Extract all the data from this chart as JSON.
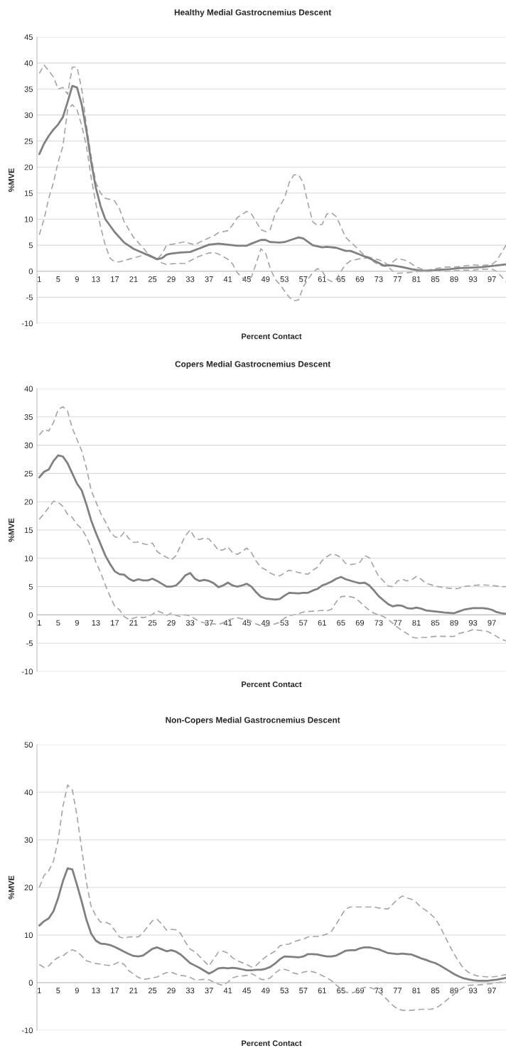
{
  "chart_data": [
    {
      "type": "line",
      "title": "Healthy Medial Gastrocnemius Descent",
      "xlabel": "Percent Contact",
      "ylabel": "%MVE",
      "xlim": [
        0.5,
        100
      ],
      "xticks": [
        1,
        5,
        9,
        13,
        17,
        21,
        25,
        29,
        33,
        37,
        41,
        45,
        49,
        53,
        57,
        61,
        65,
        69,
        73,
        77,
        81,
        85,
        89,
        93,
        97
      ],
      "ylim": [
        -10,
        45
      ],
      "yticks": [
        -10,
        -5,
        0,
        5,
        10,
        15,
        20,
        25,
        30,
        35,
        40,
        45
      ],
      "grid": "y",
      "series": [
        {
          "color": "#a6a6a6",
          "line_style": "dashed",
          "x": [
            1,
            2,
            3,
            4,
            5,
            6,
            7,
            8,
            9,
            10,
            11,
            12,
            13,
            14,
            15,
            16,
            17,
            18,
            19,
            21,
            23,
            24,
            26,
            27,
            28,
            30,
            32,
            33,
            34,
            36,
            38,
            39,
            41,
            42,
            43,
            45,
            46,
            47,
            48,
            49,
            50,
            51,
            53,
            54,
            55,
            56,
            57,
            58,
            59,
            60,
            61,
            62,
            63,
            64,
            65,
            66,
            68,
            70,
            72,
            73,
            74,
            75,
            76,
            77,
            79,
            81,
            83,
            85,
            87,
            89,
            91,
            93,
            95,
            97,
            98,
            99,
            100
          ],
          "values": [
            38,
            39.6,
            38.5,
            37.3,
            35,
            35.3,
            34,
            39.2,
            39.2,
            35,
            28,
            22,
            17,
            15,
            14,
            13.8,
            13.5,
            12,
            9.5,
            6.5,
            4.5,
            3.4,
            2.3,
            3.3,
            5,
            5.3,
            5.7,
            5.3,
            5.1,
            6,
            6.8,
            7.4,
            7.8,
            8.9,
            10.3,
            11.5,
            11,
            9.5,
            8,
            7.6,
            8,
            11,
            14,
            17,
            18.5,
            18.5,
            17,
            13,
            9.5,
            8.8,
            9,
            11,
            11.2,
            10.5,
            8.5,
            6.5,
            4.8,
            3,
            2.4,
            2.2,
            1.8,
            1.2,
            1.8,
            2.5,
            2,
            0.8,
            0.1,
            0.5,
            0.8,
            0.8,
            1,
            1.2,
            1.1,
            1.3,
            2,
            3.5,
            5
          ]
        },
        {
          "color": "#a6a6a6",
          "line_style": "dashed",
          "x": [
            1,
            2,
            3,
            4,
            5,
            6,
            7,
            8,
            9,
            10,
            11,
            12,
            13,
            14,
            15,
            16,
            17,
            18,
            20,
            22,
            24,
            26,
            27,
            28,
            30,
            32,
            33,
            35,
            37,
            38,
            39,
            41,
            42,
            43,
            44,
            45,
            46,
            47,
            48,
            49,
            50,
            51,
            52,
            54,
            55,
            56,
            57,
            58,
            59,
            60,
            61,
            62,
            63,
            64,
            65,
            66,
            67,
            69,
            71,
            72,
            73,
            74,
            75,
            76,
            77,
            79,
            81,
            83,
            85,
            87,
            89,
            91,
            93,
            95,
            97,
            98,
            99,
            100
          ],
          "values": [
            7,
            10,
            14,
            17,
            21,
            24,
            31,
            32,
            31,
            28,
            24,
            18,
            13,
            8.5,
            5,
            2.5,
            1.8,
            1.8,
            2.3,
            2.8,
            3.3,
            2.4,
            1.6,
            1.3,
            1.5,
            1.5,
            2,
            2.9,
            3.5,
            3.6,
            3.3,
            2.3,
            1.4,
            -0.3,
            -1.2,
            -1.8,
            -1.1,
            1.5,
            4.3,
            3.5,
            0.5,
            -1.5,
            -2.5,
            -5,
            -5.7,
            -5.5,
            -3,
            -1.5,
            -0.3,
            0.5,
            0,
            -1.5,
            -2,
            -1.5,
            0,
            1.3,
            2,
            2.4,
            2.6,
            1.8,
            1.2,
            1,
            0.8,
            0,
            -0.4,
            -0.3,
            -0.1,
            0,
            0.1,
            0,
            0.1,
            0.2,
            0.2,
            0.4,
            0.4,
            0,
            -1,
            -2
          ]
        },
        {
          "color": "#808080",
          "line_style": "solid",
          "x": [
            1,
            2,
            3,
            4,
            5,
            6,
            7,
            8,
            9,
            10,
            11,
            12,
            13,
            14,
            15,
            17,
            19,
            21,
            23,
            26,
            27,
            28,
            29,
            31,
            33,
            35,
            37,
            39,
            41,
            43,
            45,
            46,
            48,
            49,
            50,
            52,
            53,
            55,
            56,
            57,
            59,
            61,
            62,
            64,
            66,
            67,
            69,
            71,
            73,
            74,
            76,
            78,
            80,
            82,
            84,
            86,
            88,
            90,
            93,
            95,
            97,
            99,
            100
          ],
          "values": [
            22.5,
            24.5,
            26,
            27.2,
            28.2,
            29.6,
            32.5,
            35.6,
            35.3,
            32,
            27,
            21,
            16,
            12.5,
            10,
            7.5,
            5.5,
            4.3,
            3.5,
            2.3,
            2.5,
            3.2,
            3.4,
            3.6,
            3.7,
            4.4,
            5.1,
            5.3,
            5.1,
            4.9,
            4.9,
            5.3,
            6,
            6,
            5.6,
            5.5,
            5.6,
            6.2,
            6.5,
            6.3,
            5,
            4.6,
            4.7,
            4.5,
            3.9,
            3.9,
            3.2,
            2.5,
            1.6,
            1.1,
            1.1,
            0.8,
            0.4,
            0.1,
            0.1,
            0.3,
            0.4,
            0.6,
            0.7,
            0.8,
            1,
            1.2,
            1.3
          ]
        }
      ]
    },
    {
      "type": "line",
      "title": "Copers Medial Gastrocnemius Descent",
      "xlabel": "Percent Contact",
      "ylabel": "%MVE",
      "xlim": [
        0.5,
        100
      ],
      "xticks": [
        1,
        5,
        9,
        13,
        17,
        21,
        25,
        29,
        33,
        37,
        41,
        45,
        49,
        53,
        57,
        61,
        65,
        69,
        73,
        77,
        81,
        85,
        89,
        93,
        97
      ],
      "ylim": [
        -10,
        40
      ],
      "yticks": [
        -10,
        -5,
        0,
        5,
        10,
        15,
        20,
        25,
        30,
        35,
        40
      ],
      "grid": "y",
      "series": [
        {
          "color": "#a6a6a6",
          "line_style": "dashed",
          "x": [
            1,
            2,
            3,
            4,
            5,
            6,
            7,
            8,
            9,
            10,
            11,
            12,
            13,
            14,
            15,
            16,
            17,
            18,
            19,
            20,
            21,
            22,
            23,
            24,
            25,
            26,
            27,
            28,
            29,
            30,
            31,
            32,
            33,
            34,
            35,
            36,
            37,
            38,
            39,
            40,
            41,
            42,
            43,
            44,
            45,
            46,
            47,
            48,
            49,
            50,
            51,
            52,
            53,
            54,
            55,
            56,
            57,
            58,
            59,
            60,
            61,
            62,
            63,
            64,
            65,
            66,
            67,
            68,
            69,
            70,
            71,
            72,
            73,
            74,
            75,
            76,
            77,
            78,
            79,
            80,
            81,
            82,
            83,
            85,
            87,
            89,
            90,
            91,
            93,
            95,
            97,
            99,
            100
          ],
          "values": [
            31.8,
            32.8,
            32.5,
            34,
            36.3,
            36.8,
            36,
            33,
            31,
            29,
            26,
            22,
            20,
            18,
            16.5,
            14.8,
            13.8,
            13.6,
            14.6,
            13.5,
            12.8,
            12.9,
            12.6,
            12.4,
            12.7,
            11.2,
            10.6,
            10.2,
            9.7,
            10.5,
            12.3,
            14,
            15,
            13.6,
            13.3,
            13.6,
            13.4,
            12.5,
            11.4,
            11.5,
            12,
            11,
            10.7,
            11.2,
            11.8,
            11,
            9.5,
            8.4,
            8,
            7.4,
            7,
            6.9,
            7.4,
            7.9,
            7.7,
            7.5,
            7.3,
            7.2,
            7.9,
            8.4,
            9.6,
            10.3,
            10.8,
            10.6,
            10.1,
            9.1,
            8.9,
            9,
            9.3,
            10.5,
            10.1,
            8.4,
            6.8,
            6,
            5.1,
            5,
            6,
            6.3,
            6,
            6.2,
            6.8,
            6.3,
            5.6,
            5.1,
            4.8,
            4.6,
            4.7,
            5,
            5.2,
            5.3,
            5.2,
            5,
            5
          ]
        },
        {
          "color": "#a6a6a6",
          "line_style": "dashed",
          "x": [
            1,
            2,
            3,
            4,
            5,
            6,
            7,
            8,
            9,
            10,
            11,
            12,
            13,
            14,
            15,
            16,
            17,
            18,
            19,
            20,
            21,
            22,
            23,
            24,
            25,
            26,
            27,
            28,
            29,
            30,
            31,
            32,
            33,
            34,
            35,
            36,
            37,
            38,
            39,
            40,
            41,
            42,
            43,
            44,
            45,
            46,
            47,
            48,
            49,
            50,
            51,
            52,
            53,
            54,
            55,
            56,
            57,
            58,
            60,
            61,
            62,
            63,
            64,
            65,
            66,
            67,
            68,
            69,
            70,
            71,
            72,
            73,
            74,
            75,
            76,
            77,
            78,
            79,
            80,
            81,
            82,
            83,
            85,
            87,
            89,
            90,
            92,
            93,
            95,
            96,
            97,
            98,
            99,
            100
          ],
          "values": [
            16.9,
            17.9,
            19,
            20.1,
            19.9,
            19.2,
            17.8,
            17.2,
            16,
            15.2,
            13.8,
            11.8,
            9.3,
            7.5,
            5.3,
            3.3,
            1.5,
            0.9,
            -0.3,
            -0.8,
            -0.6,
            -0.3,
            -0.5,
            -0.3,
            0.1,
            0.7,
            0.4,
            -0.1,
            0.3,
            -0.1,
            -0.3,
            0,
            -0.2,
            -0.7,
            -1.2,
            -1.4,
            -1.5,
            -1.6,
            -1.7,
            -1.4,
            -0.9,
            -0.7,
            -0.5,
            -0.7,
            -0.8,
            -1.2,
            -1.6,
            -1.9,
            -2,
            -1.8,
            -1.6,
            -1.3,
            -0.6,
            -0.1,
            0,
            0.2,
            0.5,
            0.6,
            0.7,
            0.8,
            0.7,
            1,
            2.3,
            3.2,
            3.3,
            3.2,
            3,
            2.3,
            1.5,
            0.8,
            0.3,
            0,
            -0.3,
            -0.8,
            -1.5,
            -2.2,
            -2.8,
            -3.3,
            -3.9,
            -4.1,
            -4,
            -4,
            -3.8,
            -3.8,
            -3.8,
            -3.3,
            -2.9,
            -2.6,
            -2.8,
            -2.9,
            -3.3,
            -3.8,
            -4.3,
            -4.6
          ]
        },
        {
          "color": "#808080",
          "line_style": "solid",
          "x": [
            1,
            2,
            3,
            4,
            5,
            6,
            7,
            8,
            9,
            10,
            11,
            12,
            13,
            14,
            15,
            16,
            17,
            18,
            19,
            20,
            21,
            22,
            23,
            24,
            25,
            26,
            27,
            28,
            29,
            30,
            31,
            32,
            33,
            34,
            35,
            36,
            37,
            38,
            39,
            40,
            41,
            42,
            43,
            44,
            45,
            46,
            47,
            48,
            49,
            50,
            51,
            52,
            53,
            54,
            56,
            57,
            58,
            59,
            60,
            61,
            62,
            63,
            64,
            65,
            66,
            68,
            69,
            70,
            71,
            72,
            73,
            74,
            75,
            76,
            77,
            78,
            79,
            80,
            81,
            82,
            83,
            85,
            87,
            89,
            90,
            91,
            93,
            95,
            96,
            97,
            98,
            99,
            100
          ],
          "values": [
            24.3,
            25.3,
            25.7,
            27.2,
            28.2,
            28,
            26.8,
            25,
            23.2,
            22,
            19.5,
            16.7,
            14.5,
            12.5,
            10.5,
            9,
            7.7,
            7.2,
            7.1,
            6.4,
            6,
            6.3,
            6.1,
            6.1,
            6.4,
            6,
            5.5,
            5,
            5,
            5.2,
            6,
            7,
            7.4,
            6.4,
            6,
            6.2,
            6,
            5.6,
            4.9,
            5.2,
            5.7,
            5.2,
            5,
            5.2,
            5.5,
            5,
            4,
            3.2,
            2.9,
            2.8,
            2.7,
            2.8,
            3.4,
            3.9,
            3.8,
            3.9,
            3.9,
            4.3,
            4.6,
            5.2,
            5.5,
            5.9,
            6.4,
            6.7,
            6.3,
            5.8,
            5.6,
            5.7,
            5.2,
            4.3,
            3.3,
            2.6,
            1.9,
            1.5,
            1.7,
            1.6,
            1.2,
            1.1,
            1.3,
            1.1,
            0.8,
            0.6,
            0.4,
            0.3,
            0.6,
            0.9,
            1.2,
            1.2,
            1.1,
            0.9,
            0.5,
            0.3,
            0.2
          ]
        }
      ]
    },
    {
      "type": "line",
      "title": "Non-Copers Medial Gastrocnemius Descent",
      "xlabel": "Percent Contact",
      "ylabel": "%MVE",
      "xlim": [
        0.5,
        100
      ],
      "xticks": [
        1,
        5,
        9,
        13,
        17,
        21,
        25,
        29,
        33,
        37,
        41,
        45,
        49,
        53,
        57,
        61,
        65,
        69,
        73,
        77,
        81,
        85,
        89,
        93,
        97
      ],
      "ylim": [
        -10,
        50
      ],
      "yticks": [
        -10,
        0,
        10,
        20,
        30,
        40,
        50
      ],
      "grid": "y",
      "series": [
        {
          "color": "#a6a6a6",
          "line_style": "dashed",
          "x": [
            1,
            2,
            3,
            4,
            5,
            6,
            7,
            8,
            9,
            10,
            11,
            12,
            13,
            14,
            15,
            16,
            17,
            18,
            19,
            20,
            21,
            22,
            23,
            24,
            25,
            26,
            27,
            28,
            29,
            30,
            31,
            32,
            33,
            34,
            35,
            36,
            37,
            38,
            39,
            40,
            41,
            42,
            43,
            44,
            45,
            46,
            47,
            48,
            49,
            50,
            51,
            52,
            53,
            54,
            55,
            56,
            57,
            58,
            59,
            60,
            61,
            62,
            63,
            64,
            65,
            66,
            67,
            68,
            70,
            71,
            72,
            73,
            74,
            75,
            76,
            77,
            78,
            79,
            80,
            81,
            82,
            83,
            84,
            85,
            86,
            87,
            88,
            89,
            90,
            91,
            92,
            93,
            94,
            95,
            96,
            97,
            98,
            99,
            100
          ],
          "values": [
            20,
            22.5,
            23.5,
            25.5,
            30,
            37,
            41.5,
            40.5,
            35,
            28,
            21,
            16,
            14,
            12.7,
            12.7,
            12.3,
            11,
            9.6,
            9.3,
            9.6,
            9.6,
            9.6,
            10.5,
            11.8,
            13,
            13.3,
            12.3,
            11,
            11.2,
            11.1,
            10.3,
            8.5,
            7,
            6.5,
            5.5,
            4.5,
            3.5,
            5,
            6.4,
            6.6,
            6.2,
            5.2,
            4.6,
            4.2,
            3.8,
            3.3,
            3.6,
            4.6,
            5.4,
            6,
            6.6,
            7.7,
            8,
            8.1,
            8.6,
            8.9,
            9.1,
            9.6,
            9.7,
            9.7,
            9.9,
            10.2,
            10.8,
            12.3,
            14,
            15.5,
            15.9,
            15.9,
            15.9,
            15.9,
            15.9,
            15.7,
            15.5,
            15.5,
            16.5,
            17.5,
            18.2,
            17.8,
            17.5,
            16.8,
            15.8,
            15.2,
            14.4,
            13.5,
            11.8,
            9.8,
            7.8,
            6,
            4.4,
            3,
            2.2,
            1.7,
            1.4,
            1.3,
            1.2,
            1.2,
            1.3,
            1.5,
            1.7
          ]
        },
        {
          "color": "#a6a6a6",
          "line_style": "dashed",
          "x": [
            1,
            2,
            3,
            4,
            5,
            6,
            7,
            8,
            9,
            10,
            11,
            12,
            13,
            14,
            15,
            16,
            17,
            18,
            19,
            20,
            21,
            22,
            23,
            24,
            25,
            26,
            27,
            28,
            29,
            30,
            31,
            32,
            33,
            34,
            35,
            36,
            37,
            38,
            39,
            40,
            41,
            42,
            43,
            44,
            45,
            46,
            47,
            48,
            49,
            50,
            51,
            52,
            53,
            54,
            55,
            56,
            57,
            58,
            59,
            60,
            61,
            62,
            63,
            64,
            65,
            66,
            67,
            68,
            69,
            70,
            71,
            72,
            73,
            74,
            75,
            76,
            77,
            78,
            79,
            80,
            81,
            82,
            83,
            84,
            85,
            86,
            87,
            88,
            89,
            90,
            91,
            92,
            93,
            94,
            95,
            96,
            97,
            98,
            99,
            100
          ],
          "values": [
            3.8,
            3.2,
            3.5,
            4.6,
            5.3,
            5.6,
            6.4,
            6.9,
            6.5,
            5.6,
            4.6,
            4.3,
            4,
            3.9,
            3.7,
            3.6,
            3.9,
            4.4,
            3.8,
            2.5,
            1.8,
            1.1,
            0.7,
            0.8,
            1,
            1.2,
            1.7,
            2.1,
            2.2,
            1.8,
            1.5,
            1.4,
            1.1,
            0.6,
            0.6,
            0.7,
            0.6,
            0.1,
            -0.3,
            -0.6,
            0.1,
            1,
            1.3,
            1.4,
            1.5,
            1.9,
            1.4,
            0.7,
            0.6,
            1,
            2,
            2.7,
            2.8,
            2.5,
            2,
            1.8,
            2.2,
            2.4,
            2.3,
            2,
            1.5,
            1,
            0.4,
            -0.5,
            -1.3,
            -2,
            -2.2,
            -2,
            -1.4,
            -1,
            -1,
            -1.3,
            -2,
            -2.8,
            -3.8,
            -4.8,
            -5.5,
            -5.8,
            -5.8,
            -5.8,
            -5.7,
            -5.6,
            -5.6,
            -5.6,
            -5.4,
            -4.8,
            -4,
            -3.2,
            -2.4,
            -1.6,
            -1,
            -0.6,
            -0.5,
            -0.5,
            -0.4,
            -0.3,
            -0.2,
            0,
            0.1,
            0.2
          ]
        },
        {
          "color": "#808080",
          "line_style": "solid",
          "x": [
            1,
            2,
            3,
            4,
            5,
            6,
            7,
            8,
            9,
            10,
            11,
            12,
            13,
            14,
            15,
            16,
            17,
            18,
            19,
            20,
            21,
            22,
            23,
            24,
            25,
            26,
            27,
            28,
            29,
            30,
            31,
            32,
            33,
            34,
            35,
            36,
            37,
            38,
            39,
            40,
            41,
            42,
            43,
            44,
            45,
            46,
            47,
            48,
            49,
            50,
            51,
            52,
            53,
            55,
            56,
            57,
            58,
            59,
            60,
            61,
            62,
            63,
            64,
            65,
            66,
            67,
            68,
            69,
            70,
            71,
            72,
            73,
            74,
            75,
            76,
            77,
            78,
            79,
            80,
            81,
            82,
            83,
            84,
            85,
            86,
            87,
            88,
            89,
            90,
            91,
            92,
            93,
            94,
            95,
            96,
            97,
            98,
            99,
            100
          ],
          "values": [
            12,
            12.9,
            13.5,
            15,
            17.8,
            21.3,
            24,
            23.8,
            20.5,
            17,
            13.2,
            10.3,
            8.8,
            8.2,
            8.1,
            7.9,
            7.5,
            7,
            6.5,
            6,
            5.6,
            5.5,
            5.7,
            6.4,
            7.1,
            7.4,
            7,
            6.6,
            6.8,
            6.5,
            5.9,
            5,
            4.1,
            3.6,
            3.1,
            2.5,
            1.9,
            2.4,
            3,
            3.1,
            3,
            3.1,
            3,
            2.8,
            2.6,
            2.6,
            2.7,
            2.7,
            2.9,
            3.3,
            4,
            4.9,
            5.5,
            5.4,
            5.3,
            5.5,
            6,
            6,
            5.9,
            5.7,
            5.5,
            5.5,
            5.7,
            6.2,
            6.7,
            6.8,
            6.8,
            7.2,
            7.4,
            7.4,
            7.2,
            7,
            6.6,
            6.2,
            6.1,
            6,
            6.1,
            6,
            5.9,
            5.5,
            5.1,
            4.8,
            4.4,
            4.1,
            3.6,
            3,
            2.4,
            1.8,
            1.3,
            0.9,
            0.7,
            0.5,
            0.4,
            0.4,
            0.4,
            0.5,
            0.6,
            0.8,
            1
          ]
        }
      ]
    }
  ]
}
